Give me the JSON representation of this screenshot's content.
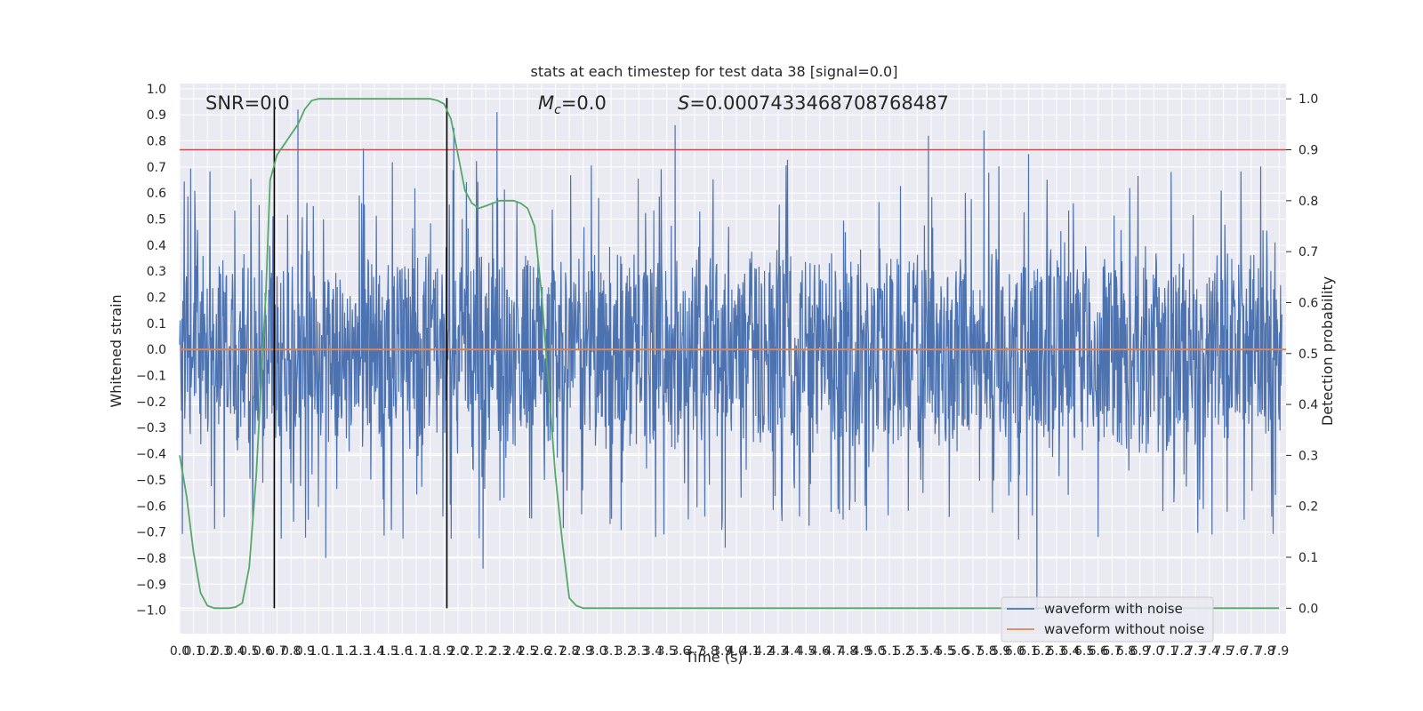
{
  "chart_data": {
    "type": "line",
    "title": "stats at each timestep for test data 38 [signal=0.0]",
    "xlabel": "Time (s)",
    "ylabel": "Whitened strain",
    "y2label": "Detection probability",
    "xlim": [
      0.0,
      7.95
    ],
    "ylim": [
      -1.09,
      1.02
    ],
    "y2lim": [
      -0.05,
      1.03
    ],
    "grid": true,
    "legend_placement": "lower-right",
    "x_tick_labels": [
      "0.0",
      "0.1",
      "0.2",
      "0.3",
      "0.4",
      "0.5",
      "0.6",
      "0.7",
      "0.8",
      "0.9",
      "1.0",
      "1.1",
      "1.2",
      "1.3",
      "1.4",
      "1.5",
      "1.6",
      "1.7",
      "1.8",
      "1.9",
      "2.0",
      "2.1",
      "2.2",
      "2.3",
      "2.4",
      "2.5",
      "2.6",
      "2.7",
      "2.8",
      "2.9",
      "3.0",
      "3.1",
      "3.2",
      "3.3",
      "3.4",
      "3.5",
      "3.6",
      "3.7",
      "3.8",
      "3.9",
      "4.0",
      "4.1",
      "4.2",
      "4.3",
      "4.4",
      "4.5",
      "4.6",
      "4.7",
      "4.8",
      "4.9",
      "5.0",
      "5.1",
      "5.2",
      "5.3",
      "5.4",
      "5.5",
      "5.6",
      "5.7",
      "5.8",
      "5.9",
      "6.0",
      "6.1",
      "6.2",
      "6.3",
      "6.4",
      "6.5",
      "6.6",
      "6.7",
      "6.8",
      "6.9",
      "7.0",
      "7.1",
      "7.2",
      "7.3",
      "7.4",
      "7.5",
      "7.6",
      "7.7",
      "7.8",
      "7.9"
    ],
    "y_tick_labels": [
      "1.0",
      "0.9",
      "0.8",
      "0.7",
      "0.6",
      "0.5",
      "0.4",
      "0.3",
      "0.2",
      "0.1",
      "0.0",
      "−0.1",
      "−0.2",
      "−0.3",
      "−0.4",
      "−0.5",
      "−0.6",
      "−0.7",
      "−0.8",
      "−0.9",
      "−1.0"
    ],
    "y2_tick_labels": [
      "1.0",
      "0.9",
      "0.8",
      "0.7",
      "0.6",
      "0.5",
      "0.4",
      "0.3",
      "0.2",
      "0.1",
      "0.0"
    ],
    "annotations": {
      "snr": "SNR=0.0",
      "mc_symbol": "M",
      "mc_sub": "c",
      "mc_value": "=0.0",
      "s_symbol": "S",
      "s_value": "=0.0007433468708768487"
    },
    "threshold_y2": 0.9,
    "vertical_lines_x": [
      0.68,
      1.92
    ],
    "series": [
      {
        "name": "waveform with noise",
        "color": "#4c72b0",
        "noise_envelope_typical": 0.42,
        "peaks": [
          [
            0.85,
            0.92
          ],
          [
            1.32,
            0.77
          ],
          [
            1.97,
            0.85
          ],
          [
            2.28,
            0.91
          ],
          [
            3.56,
            0.86
          ],
          [
            5.38,
            0.82
          ],
          [
            5.78,
            0.84
          ],
          [
            6.1,
            0.75
          ],
          [
            1.05,
            -0.8
          ],
          [
            2.18,
            -0.84
          ],
          [
            3.92,
            -0.76
          ],
          [
            6.16,
            -1.0
          ]
        ]
      },
      {
        "name": "waveform without noise",
        "color": "#dd8452",
        "values_constant": 0.0
      },
      {
        "name": "detection probability",
        "color": "#55a868",
        "axis": "right",
        "x": [
          0.0,
          0.05,
          0.1,
          0.15,
          0.2,
          0.25,
          0.3,
          0.35,
          0.4,
          0.45,
          0.5,
          0.55,
          0.6,
          0.62,
          0.65,
          0.7,
          0.75,
          0.8,
          0.85,
          0.9,
          0.95,
          1.0,
          1.1,
          1.2,
          1.4,
          1.6,
          1.8,
          1.85,
          1.9,
          1.95,
          2.0,
          2.05,
          2.1,
          2.15,
          2.2,
          2.25,
          2.3,
          2.35,
          2.4,
          2.45,
          2.5,
          2.55,
          2.6,
          2.65,
          2.7,
          2.75,
          2.8,
          2.85,
          2.9,
          3.0,
          3.5,
          4.0,
          5.0,
          6.0,
          7.0,
          7.9
        ],
        "values": [
          0.3,
          0.22,
          0.11,
          0.03,
          0.005,
          0.0,
          0.0,
          0.0,
          0.002,
          0.01,
          0.08,
          0.26,
          0.52,
          0.62,
          0.84,
          0.89,
          0.91,
          0.93,
          0.95,
          0.98,
          0.997,
          1.0,
          1.0,
          1.0,
          1.0,
          1.0,
          1.0,
          0.997,
          0.99,
          0.96,
          0.89,
          0.82,
          0.795,
          0.785,
          0.79,
          0.795,
          0.8,
          0.8,
          0.8,
          0.795,
          0.785,
          0.75,
          0.62,
          0.44,
          0.26,
          0.13,
          0.02,
          0.005,
          0.0,
          0.0,
          0.0,
          0.0,
          0.0,
          0.0,
          0.0,
          0.0
        ]
      }
    ],
    "colors": {
      "plot_bg": "#eaeaf2",
      "grid": "#ffffff",
      "threshold": "#c44e52",
      "vline": "#000000"
    }
  }
}
